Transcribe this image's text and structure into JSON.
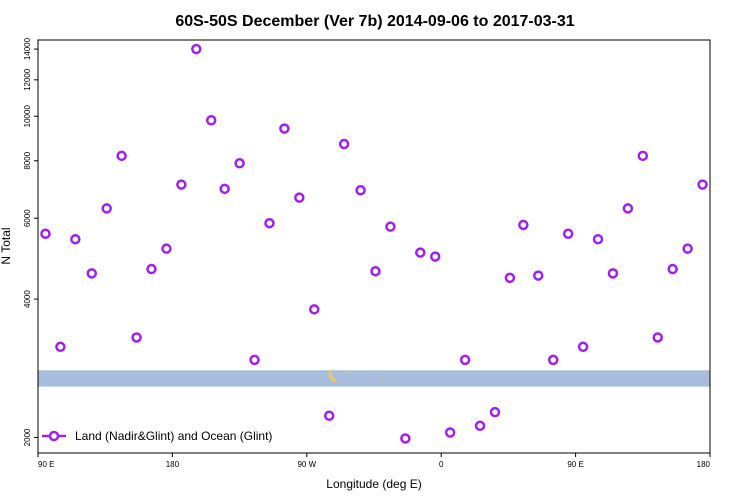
{
  "chart_data": {
    "type": "scatter",
    "title": "60S-50S December (Ver 7b)   2014-09-06 to 2017-03-31",
    "xlabel": "Longitude (deg E)",
    "ylabel": "N Total",
    "xlim": [
      90,
      540
    ],
    "ylim": [
      1850,
      14650
    ],
    "y_scale": "log",
    "x_tick_positions": [
      90,
      180,
      270,
      360,
      450,
      540
    ],
    "x_tick_labels": [
      "90 E",
      "180",
      "90 W",
      "0",
      "90 E",
      "180"
    ],
    "y_ticks": [
      2000,
      4000,
      6000,
      8000,
      10000,
      12000,
      14000
    ],
    "y_tick_labels": [
      "2000",
      "4000",
      "6000",
      "8000",
      "10000",
      "12000",
      "14000"
    ],
    "grid": false,
    "legend_position": "bottom-left",
    "colors": {
      "series": "#a020f0",
      "ocean_band": "#a8bcdc",
      "land": "#f0c850"
    },
    "land_band_ylim": [
      2580,
      2800
    ],
    "series": [
      {
        "name": "Land (Nadir&Glint) and Ocean (Glint)",
        "x": [
          95,
          105,
          115,
          126,
          136,
          146,
          156,
          166,
          176,
          186,
          196,
          206,
          215,
          225,
          235,
          245,
          255,
          265,
          275,
          285,
          295,
          306,
          316,
          326,
          336,
          346,
          356,
          366,
          376,
          386,
          396,
          406,
          415,
          425,
          435,
          445,
          455,
          465,
          475,
          485,
          495,
          505,
          515,
          525,
          535
        ],
        "y": [
          5550,
          3150,
          5400,
          4550,
          6300,
          8200,
          3300,
          4650,
          5150,
          7100,
          14000,
          9800,
          6950,
          7900,
          2950,
          5850,
          9400,
          6650,
          3800,
          2230,
          8700,
          6900,
          4600,
          5750,
          1990,
          5050,
          4950,
          2050,
          2950,
          2120,
          2270,
          4450,
          5800,
          4500,
          2950,
          5550,
          3150,
          5400,
          4550,
          6300,
          8200,
          3300,
          4650,
          5150,
          7100
        ]
      }
    ]
  }
}
